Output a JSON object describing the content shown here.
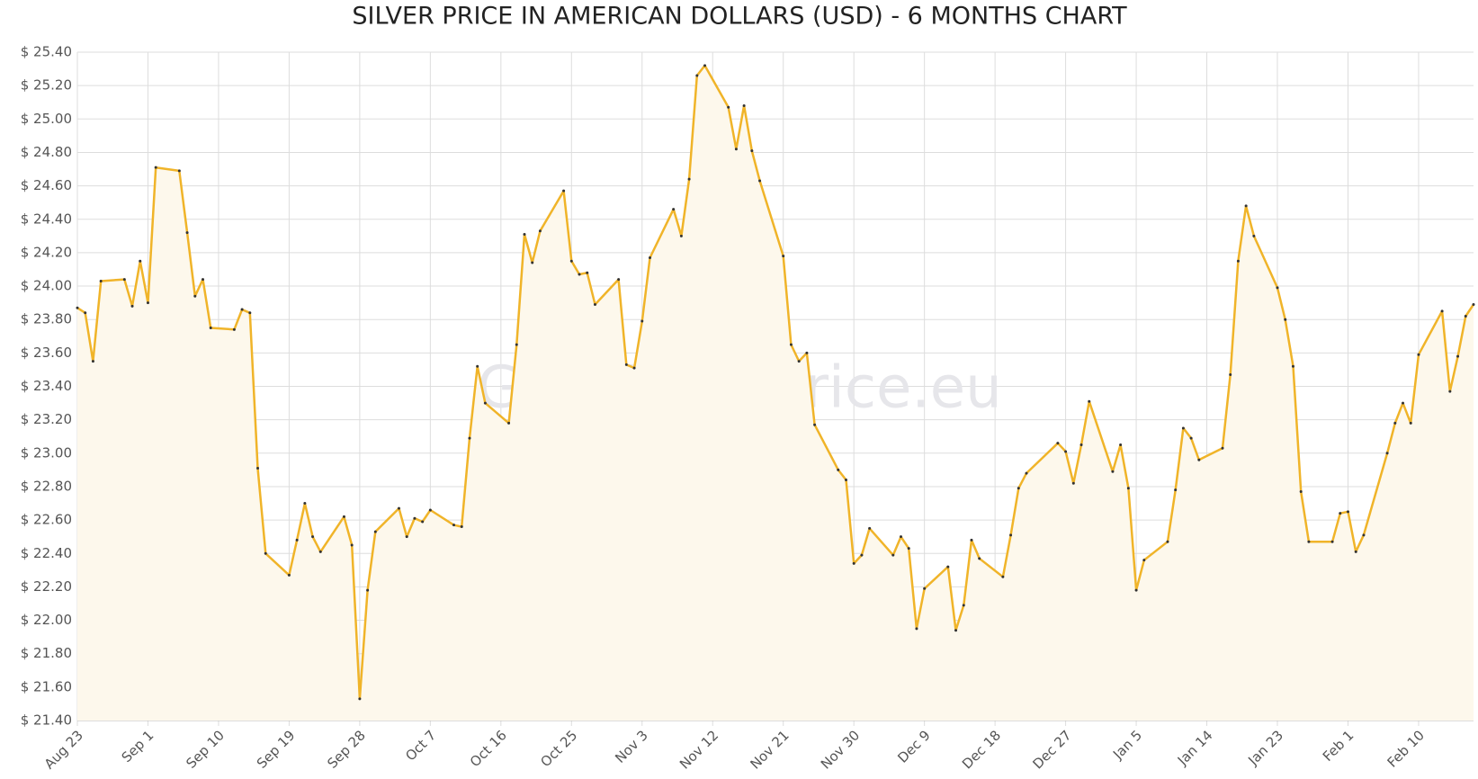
{
  "chart_data": {
    "type": "line",
    "title": "SILVER PRICE IN AMERICAN DOLLARS (USD) - 6 MONTHS CHART",
    "watermark": "GoldSilverPrice.eu",
    "color": "#f0b429",
    "fill": "#fdf8ec",
    "grid": true,
    "xlim": [
      0,
      178
    ],
    "xticks": [
      {
        "value": 0,
        "label": "Aug 23"
      },
      {
        "value": 9,
        "label": "Sep 1"
      },
      {
        "value": 18,
        "label": "Sep 10"
      },
      {
        "value": 27,
        "label": "Sep 19"
      },
      {
        "value": 36,
        "label": "Sep 28"
      },
      {
        "value": 45,
        "label": "Oct 7"
      },
      {
        "value": 54,
        "label": "Oct 16"
      },
      {
        "value": 63,
        "label": "Oct 25"
      },
      {
        "value": 72,
        "label": "Nov 3"
      },
      {
        "value": 81,
        "label": "Nov 12"
      },
      {
        "value": 90,
        "label": "Nov 21"
      },
      {
        "value": 99,
        "label": "Nov 30"
      },
      {
        "value": 108,
        "label": "Dec 9"
      },
      {
        "value": 117,
        "label": "Dec 18"
      },
      {
        "value": 126,
        "label": "Dec 27"
      },
      {
        "value": 135,
        "label": "Jan 5"
      },
      {
        "value": 144,
        "label": "Jan 14"
      },
      {
        "value": 153,
        "label": "Jan 23"
      },
      {
        "value": 162,
        "label": "Feb 1"
      },
      {
        "value": 171,
        "label": "Feb 10"
      }
    ],
    "ylim": [
      21.4,
      25.4
    ],
    "yticks": [
      {
        "value": 21.4,
        "label": "$ 21.40"
      },
      {
        "value": 21.6,
        "label": "$ 21.60"
      },
      {
        "value": 21.8,
        "label": "$ 21.80"
      },
      {
        "value": 22.0,
        "label": "$ 22.00"
      },
      {
        "value": 22.2,
        "label": "$ 22.20"
      },
      {
        "value": 22.4,
        "label": "$ 22.40"
      },
      {
        "value": 22.6,
        "label": "$ 22.60"
      },
      {
        "value": 22.8,
        "label": "$ 22.80"
      },
      {
        "value": 23.0,
        "label": "$ 23.00"
      },
      {
        "value": 23.2,
        "label": "$ 23.20"
      },
      {
        "value": 23.4,
        "label": "$ 23.40"
      },
      {
        "value": 23.6,
        "label": "$ 23.60"
      },
      {
        "value": 23.8,
        "label": "$ 23.80"
      },
      {
        "value": 24.0,
        "label": "$ 24.00"
      },
      {
        "value": 24.2,
        "label": "$ 24.20"
      },
      {
        "value": 24.4,
        "label": "$ 24.40"
      },
      {
        "value": 24.6,
        "label": "$ 24.60"
      },
      {
        "value": 24.8,
        "label": "$ 24.80"
      },
      {
        "value": 25.0,
        "label": "$ 25.00"
      },
      {
        "value": 25.2,
        "label": "$ 25.20"
      },
      {
        "value": 25.4,
        "label": "$ 25.40"
      }
    ],
    "x": [
      0,
      1,
      2,
      3,
      6,
      7,
      8,
      9,
      10,
      13,
      14,
      15,
      16,
      17,
      20,
      21,
      22,
      23,
      24,
      27,
      28,
      29,
      30,
      31,
      34,
      35,
      36,
      37,
      38,
      41,
      42,
      43,
      44,
      45,
      48,
      49,
      50,
      51,
      52,
      55,
      56,
      57,
      58,
      59,
      62,
      63,
      64,
      65,
      66,
      69,
      70,
      71,
      72,
      73,
      76,
      77,
      78,
      79,
      80,
      83,
      84,
      85,
      86,
      87,
      90,
      91,
      92,
      93,
      94,
      97,
      98,
      99,
      100,
      101,
      104,
      105,
      106,
      107,
      108,
      111,
      112,
      113,
      114,
      115,
      118,
      119,
      120,
      121,
      125,
      126,
      127,
      128,
      129,
      132,
      133,
      134,
      135,
      136,
      139,
      140,
      141,
      142,
      143,
      146,
      147,
      148,
      149,
      150,
      153,
      154,
      155,
      156,
      157,
      160,
      161,
      162,
      163,
      164,
      167,
      168,
      169,
      170,
      171,
      174,
      175,
      176,
      177,
      178
    ],
    "values": [
      23.87,
      23.84,
      23.55,
      24.03,
      24.04,
      23.88,
      24.15,
      23.9,
      24.71,
      24.69,
      24.32,
      23.94,
      24.04,
      23.75,
      23.74,
      23.86,
      23.84,
      22.91,
      22.4,
      22.27,
      22.48,
      22.7,
      22.5,
      22.41,
      22.62,
      22.45,
      21.53,
      22.18,
      22.53,
      22.67,
      22.5,
      22.61,
      22.59,
      22.66,
      22.57,
      22.56,
      23.09,
      23.52,
      23.3,
      23.18,
      23.65,
      24.31,
      24.14,
      24.33,
      24.57,
      24.15,
      24.07,
      24.08,
      23.89,
      24.04,
      23.53,
      23.51,
      23.79,
      24.17,
      24.46,
      24.3,
      24.64,
      25.26,
      25.32,
      25.07,
      24.82,
      25.08,
      24.81,
      24.63,
      24.18,
      23.65,
      23.55,
      23.6,
      23.17,
      22.9,
      22.84,
      22.34,
      22.39,
      22.55,
      22.39,
      22.5,
      22.43,
      21.95,
      22.19,
      22.32,
      21.94,
      22.09,
      22.48,
      22.37,
      22.26,
      22.51,
      22.79,
      22.88,
      23.06,
      23.01,
      22.82,
      23.05,
      23.31,
      22.89,
      23.05,
      22.79,
      22.18,
      22.36,
      22.47,
      22.78,
      23.15,
      23.09,
      22.96,
      23.03,
      23.47,
      24.15,
      24.48,
      24.3,
      23.99,
      23.8,
      23.52,
      22.77,
      22.47,
      22.47,
      22.64,
      22.65,
      22.41,
      22.51,
      23.0,
      23.18,
      23.3,
      23.18,
      23.59,
      23.85,
      23.37,
      23.58,
      23.82,
      23.89
    ]
  }
}
